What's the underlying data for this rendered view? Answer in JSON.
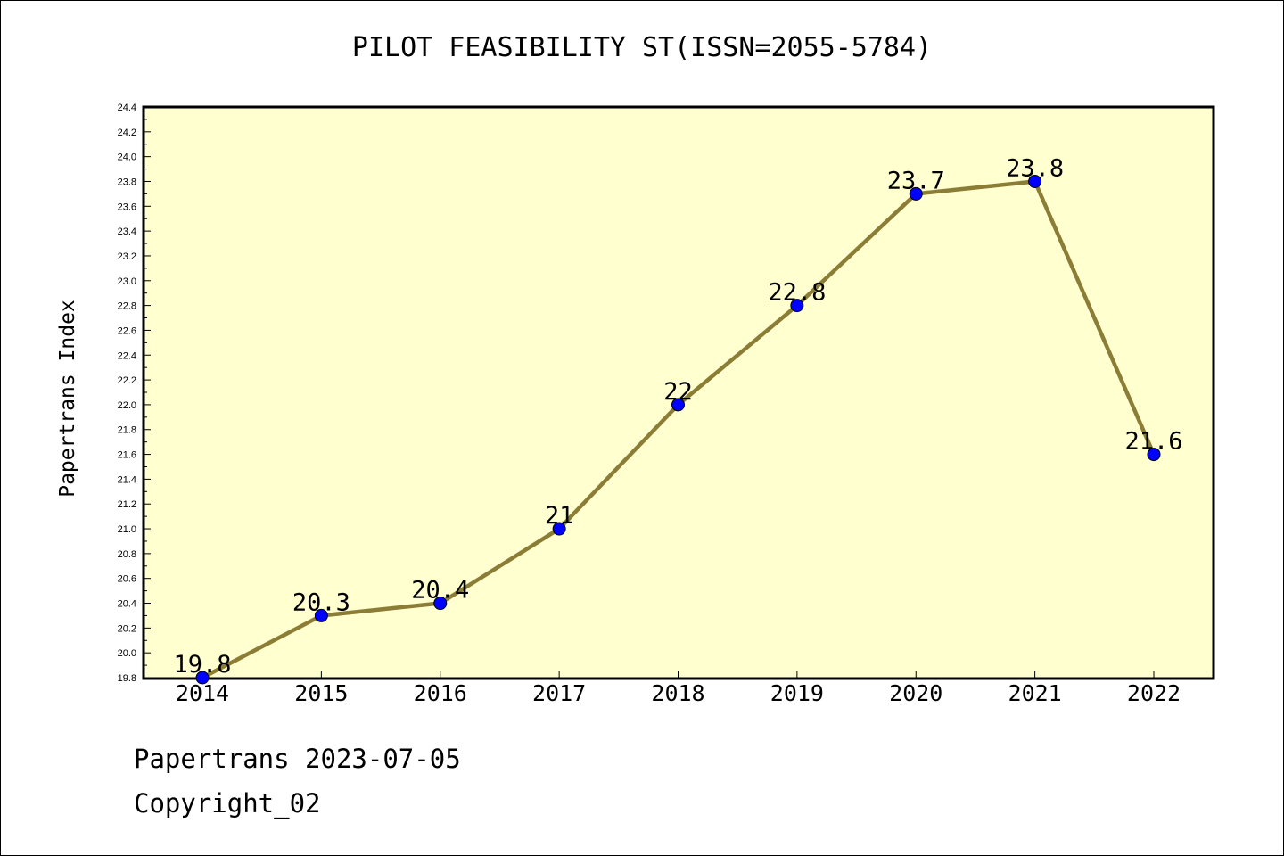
{
  "chart_data": {
    "type": "line",
    "title": "PILOT FEASIBILITY ST(ISSN=2055-5784)",
    "xlabel": "",
    "ylabel": "Papertrans Index",
    "x": [
      "2014",
      "2015",
      "2016",
      "2017",
      "2018",
      "2019",
      "2020",
      "2021",
      "2022"
    ],
    "series": [
      {
        "values": [
          19.8,
          20.3,
          20.4,
          21.0,
          22.0,
          22.8,
          23.7,
          23.8,
          21.6
        ],
        "data_labels": [
          "19.8",
          "20.3",
          "20.4",
          "21",
          "22",
          "22.8",
          "23.7",
          "23.8",
          "21.6"
        ]
      }
    ],
    "ylim": [
      19.8,
      24.4
    ],
    "yticks": [
      "19.8",
      "20.0",
      "20.2",
      "20.4",
      "20.6",
      "20.8",
      "21.0",
      "21.2",
      "21.4",
      "21.6",
      "21.8",
      "22.0",
      "22.2",
      "22.4",
      "22.6",
      "22.8",
      "23.0",
      "23.2",
      "23.4",
      "23.6",
      "23.8",
      "24.0",
      "24.2",
      "24.4"
    ],
    "grid": false,
    "colors": {
      "plot_background": "#ffffd0",
      "line": "#8b7d35",
      "marker": "#0000ff"
    }
  },
  "footer": {
    "line1": "Papertrans 2023-07-05",
    "line2": "Copyright_02"
  }
}
